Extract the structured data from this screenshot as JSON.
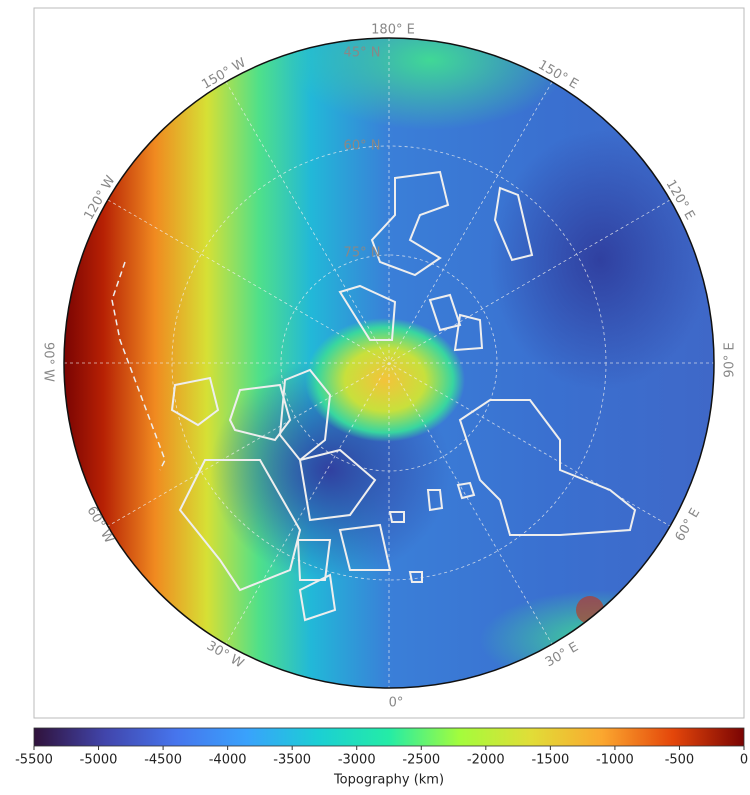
{
  "map": {
    "longitude_labels": [
      "180° E",
      "150° E",
      "120° E",
      "90° E",
      "60° E",
      "30° E",
      "0°",
      "30° W",
      "60° W",
      "90° W",
      "120° W",
      "150° W"
    ],
    "latitude_labels": [
      "45° N",
      "60° N",
      "75° N"
    ]
  },
  "colorbar": {
    "label": "Topography (km)",
    "range": [
      -5500,
      0
    ],
    "ticks": [
      -5500,
      -5000,
      -4500,
      -4000,
      -3500,
      -3000,
      -2500,
      -2000,
      -1500,
      -1000,
      -500,
      0
    ]
  }
}
